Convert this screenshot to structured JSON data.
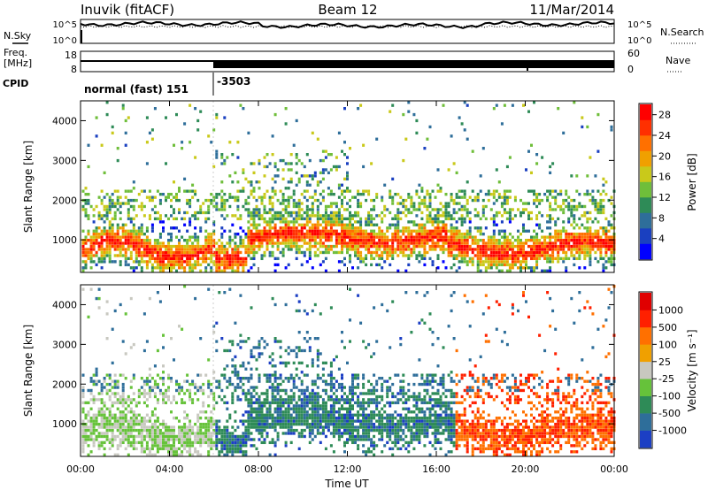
{
  "header": {
    "station": "Inuvik (fitACF)",
    "beam": "Beam 12",
    "date": "11/Mar/2014"
  },
  "aux_panels": {
    "nsky_label": "N.Sky",
    "nsearch_label": "N.Search",
    "nsky_ticks": [
      "10^5",
      "10^0"
    ],
    "freq_label_line1": "Freq.",
    "freq_label_line2": "[MHz]",
    "freq_ticks": [
      "18",
      "8"
    ],
    "nave_label": "Nave",
    "nave_ticks": [
      "60",
      "0"
    ],
    "cpid_label": "CPID",
    "cpid_segments": [
      {
        "label": "normal (fast) 151",
        "start_hour": 0,
        "end_hour": 6
      },
      {
        "label": "-3503",
        "start_hour": 6,
        "end_hour": 24
      }
    ]
  },
  "chart_data": [
    {
      "type": "heatmap",
      "title": "",
      "xlabel": "Time UT",
      "ylabel": "Slant Range [km]",
      "xlim": [
        0,
        24
      ],
      "ylim": [
        180,
        4500
      ],
      "x_ticks": [
        "00:00",
        "04:00",
        "08:00",
        "12:00",
        "16:00",
        "20:00",
        "00:00"
      ],
      "y_ticks": [
        1000,
        2000,
        3000,
        4000
      ],
      "colorbar": {
        "label": "Power [dB]",
        "range": [
          0,
          30
        ],
        "ticks": [
          4,
          8,
          12,
          16,
          20,
          24,
          28
        ],
        "colors": [
          "#0000ff",
          "#1a40c0",
          "#2e6e9a",
          "#2e8b57",
          "#6fbe3a",
          "#c9c91a",
          "#f0a000",
          "#ff7000",
          "#ff3000",
          "#ff0000"
        ]
      }
    },
    {
      "type": "heatmap",
      "title": "",
      "xlabel": "Time UT",
      "ylabel": "Slant Range [km]",
      "xlim": [
        0,
        24
      ],
      "ylim": [
        180,
        4500
      ],
      "x_ticks": [
        "00:00",
        "04:00",
        "08:00",
        "12:00",
        "16:00",
        "20:00",
        "00:00"
      ],
      "y_ticks": [
        1000,
        2000,
        3000,
        4000
      ],
      "colorbar": {
        "label": "Velocity [m s⁻¹]",
        "ticks": [
          "1000",
          "500",
          "100",
          "25",
          "-25",
          "-100",
          "-500",
          "-1000"
        ],
        "colors": [
          "#1c3fc4",
          "#2e6e9a",
          "#2e8b57",
          "#66c23a",
          "#c8c8c0",
          "#f0a000",
          "#ff7000",
          "#ff2000",
          "#e00000"
        ]
      }
    }
  ]
}
